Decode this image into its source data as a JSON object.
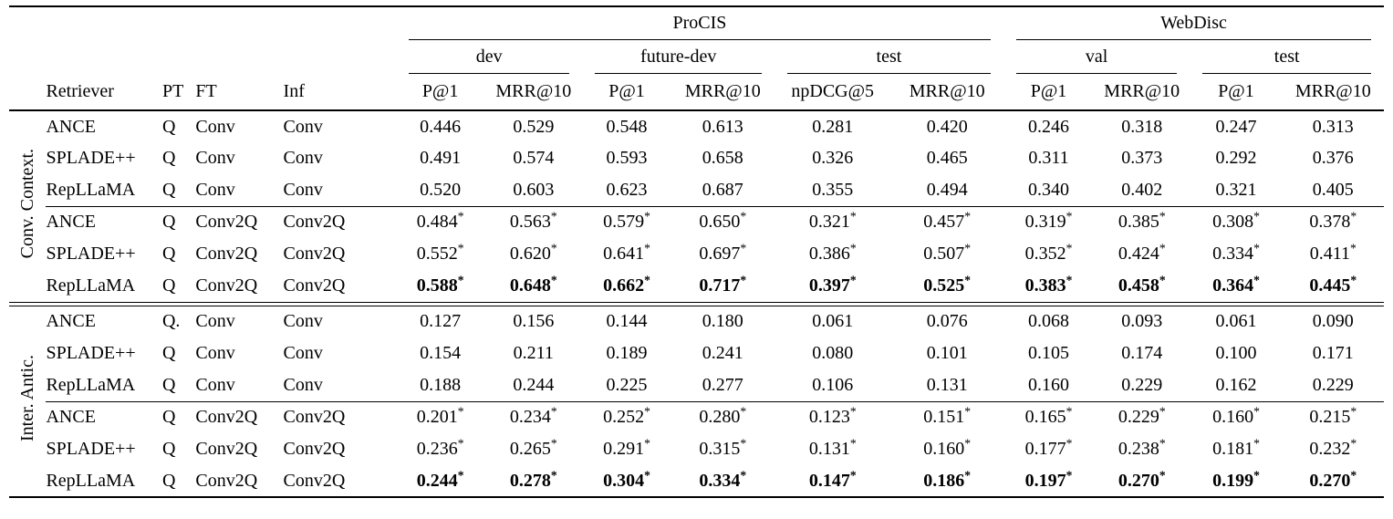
{
  "colors": {
    "text": "#000000",
    "background": "#ffffff",
    "rule": "#000000"
  },
  "table": {
    "col_groups": [
      {
        "label": "ProCIS",
        "span": 6
      },
      {
        "label": "WebDisc",
        "span": 4
      }
    ],
    "sub_groups": [
      {
        "label": "dev",
        "span": 2
      },
      {
        "label": "future-dev",
        "span": 2
      },
      {
        "label": "test",
        "span": 2
      },
      {
        "label": "val",
        "span": 2
      },
      {
        "label": "test",
        "span": 2
      }
    ],
    "left_headers": [
      "Retriever",
      "PT",
      "FT",
      "Inf"
    ],
    "metric_headers": [
      "P@1",
      "MRR@10",
      "P@1",
      "MRR@10",
      "npDCG@5",
      "MRR@10",
      "P@1",
      "MRR@10",
      "P@1",
      "MRR@10"
    ],
    "row_groups": [
      {
        "side_label": "Conv. Context.",
        "blocks": [
          {
            "rows": [
              {
                "retriever": "ANCE",
                "pt": "Q",
                "ft": "Conv",
                "inf": "Conv",
                "bold": false,
                "values": [
                  "0.446",
                  "0.529",
                  "0.548",
                  "0.613",
                  "0.281",
                  "0.420",
                  "0.246",
                  "0.318",
                  "0.247",
                  "0.313"
                ]
              },
              {
                "retriever": "SPLADE++",
                "pt": "Q",
                "ft": "Conv",
                "inf": "Conv",
                "bold": false,
                "values": [
                  "0.491",
                  "0.574",
                  "0.593",
                  "0.658",
                  "0.326",
                  "0.465",
                  "0.311",
                  "0.373",
                  "0.292",
                  "0.376"
                ]
              },
              {
                "retriever": "RepLLaMA",
                "pt": "Q",
                "ft": "Conv",
                "inf": "Conv",
                "bold": false,
                "values": [
                  "0.520",
                  "0.603",
                  "0.623",
                  "0.687",
                  "0.355",
                  "0.494",
                  "0.340",
                  "0.402",
                  "0.321",
                  "0.405"
                ]
              }
            ]
          },
          {
            "rows": [
              {
                "retriever": "ANCE",
                "pt": "Q",
                "ft": "Conv2Q",
                "inf": "Conv2Q",
                "bold": false,
                "values": [
                  "0.484*",
                  "0.563*",
                  "0.579*",
                  "0.650*",
                  "0.321*",
                  "0.457*",
                  "0.319*",
                  "0.385*",
                  "0.308*",
                  "0.378*"
                ]
              },
              {
                "retriever": "SPLADE++",
                "pt": "Q",
                "ft": "Conv2Q",
                "inf": "Conv2Q",
                "bold": false,
                "values": [
                  "0.552*",
                  "0.620*",
                  "0.641*",
                  "0.697*",
                  "0.386*",
                  "0.507*",
                  "0.352*",
                  "0.424*",
                  "0.334*",
                  "0.411*"
                ]
              },
              {
                "retriever": "RepLLaMA",
                "pt": "Q",
                "ft": "Conv2Q",
                "inf": "Conv2Q",
                "bold": true,
                "values": [
                  "0.588*",
                  "0.648*",
                  "0.662*",
                  "0.717*",
                  "0.397*",
                  "0.525*",
                  "0.383*",
                  "0.458*",
                  "0.364*",
                  "0.445*"
                ]
              }
            ]
          }
        ]
      },
      {
        "side_label": "Inter. Antic.",
        "blocks": [
          {
            "rows": [
              {
                "retriever": "ANCE",
                "pt": "Q.",
                "ft": "Conv",
                "inf": "Conv",
                "bold": false,
                "values": [
                  "0.127",
                  "0.156",
                  "0.144",
                  "0.180",
                  "0.061",
                  "0.076",
                  "0.068",
                  "0.093",
                  "0.061",
                  "0.090"
                ]
              },
              {
                "retriever": "SPLADE++",
                "pt": "Q",
                "ft": "Conv",
                "inf": "Conv",
                "bold": false,
                "values": [
                  "0.154",
                  "0.211",
                  "0.189",
                  "0.241",
                  "0.080",
                  "0.101",
                  "0.105",
                  "0.174",
                  "0.100",
                  "0.171"
                ]
              },
              {
                "retriever": "RepLLaMA",
                "pt": "Q",
                "ft": "Conv",
                "inf": "Conv",
                "bold": false,
                "values": [
                  "0.188",
                  "0.244",
                  "0.225",
                  "0.277",
                  "0.106",
                  "0.131",
                  "0.160",
                  "0.229",
                  "0.162",
                  "0.229"
                ]
              }
            ]
          },
          {
            "rows": [
              {
                "retriever": "ANCE",
                "pt": "Q",
                "ft": "Conv2Q",
                "inf": "Conv2Q",
                "bold": false,
                "values": [
                  "0.201*",
                  "0.234*",
                  "0.252*",
                  "0.280*",
                  "0.123*",
                  "0.151*",
                  "0.165*",
                  "0.229*",
                  "0.160*",
                  "0.215*"
                ]
              },
              {
                "retriever": "SPLADE++",
                "pt": "Q",
                "ft": "Conv2Q",
                "inf": "Conv2Q",
                "bold": false,
                "values": [
                  "0.236*",
                  "0.265*",
                  "0.291*",
                  "0.315*",
                  "0.131*",
                  "0.160*",
                  "0.177*",
                  "0.238*",
                  "0.181*",
                  "0.232*"
                ]
              },
              {
                "retriever": "RepLLaMA",
                "pt": "Q",
                "ft": "Conv2Q",
                "inf": "Conv2Q",
                "bold": true,
                "values": [
                  "0.244*",
                  "0.278*",
                  "0.304*",
                  "0.334*",
                  "0.147*",
                  "0.186*",
                  "0.197*",
                  "0.270*",
                  "0.199*",
                  "0.270*"
                ]
              }
            ]
          }
        ]
      }
    ]
  }
}
